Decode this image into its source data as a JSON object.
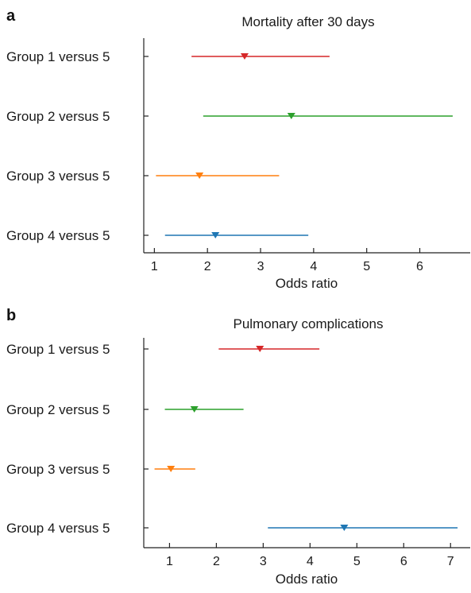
{
  "chart_data": [
    {
      "type": "forest",
      "panel": "a",
      "title": "Mortality after 30 days",
      "xlabel": "Odds ratio",
      "xlim": [
        0.8,
        6.95
      ],
      "xticks": [
        "1",
        "2",
        "3",
        "4",
        "5",
        "6"
      ],
      "grid": false,
      "rows": [
        {
          "label": "Group 1 versus 5",
          "or": 2.7,
          "lo": 1.7,
          "hi": 4.3,
          "color": "#d62728"
        },
        {
          "label": "Group 2 versus 5",
          "or": 3.58,
          "lo": 1.92,
          "hi": 6.62,
          "color": "#2ca02c"
        },
        {
          "label": "Group 3 versus 5",
          "or": 1.85,
          "lo": 1.03,
          "hi": 3.35,
          "color": "#ff7f0e"
        },
        {
          "label": "Group 4 versus 5",
          "or": 2.15,
          "lo": 1.2,
          "hi": 3.9,
          "color": "#1f77b4"
        }
      ]
    },
    {
      "type": "forest",
      "panel": "b",
      "title": "Pulmonary complications",
      "xlabel": "Odds ratio",
      "xlim": [
        0.45,
        7.42
      ],
      "xticks": [
        "1",
        "2",
        "3",
        "4",
        "5",
        "6",
        "7"
      ],
      "grid": false,
      "rows": [
        {
          "label": "Group 1 versus 5",
          "or": 2.93,
          "lo": 2.05,
          "hi": 4.2,
          "color": "#d62728"
        },
        {
          "label": "Group 2 versus 5",
          "or": 1.53,
          "lo": 0.9,
          "hi": 2.58,
          "color": "#2ca02c"
        },
        {
          "label": "Group 3 versus 5",
          "or": 1.03,
          "lo": 0.68,
          "hi": 1.55,
          "color": "#ff7f0e"
        },
        {
          "label": "Group 4 versus 5",
          "or": 4.73,
          "lo": 3.1,
          "hi": 7.15,
          "color": "#1f77b4"
        }
      ]
    }
  ]
}
